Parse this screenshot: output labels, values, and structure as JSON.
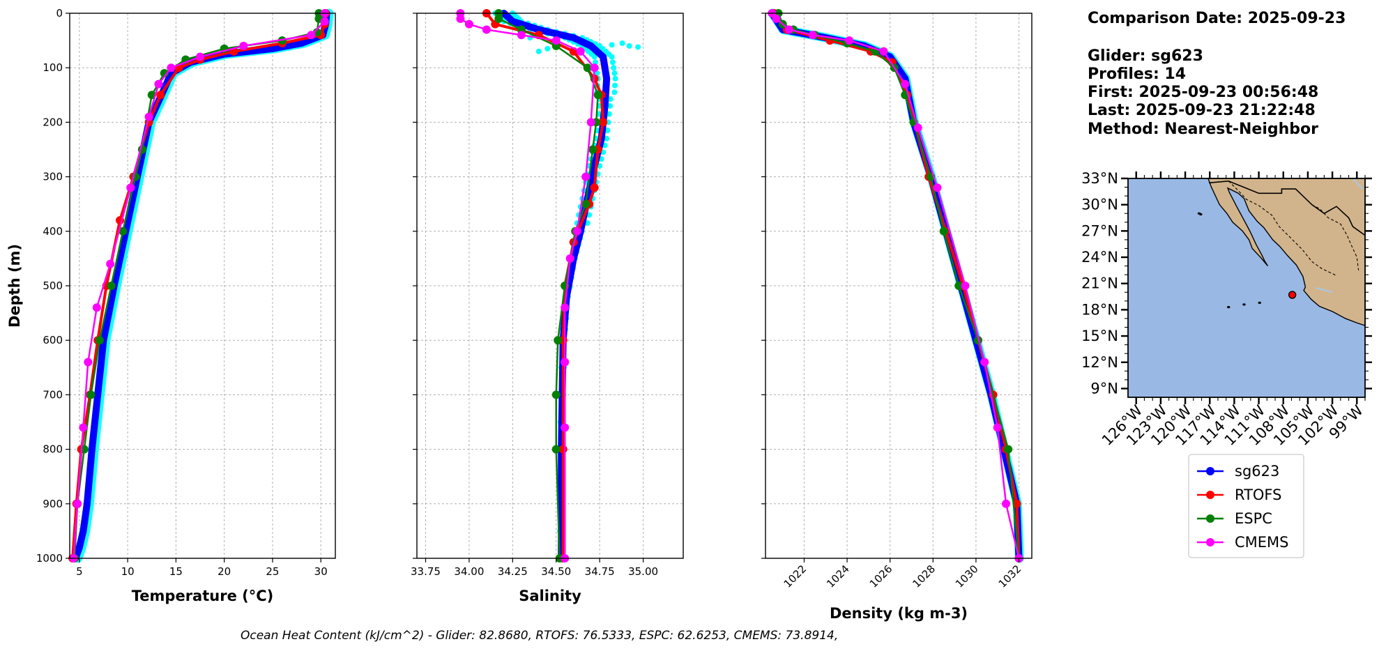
{
  "info": {
    "comparison_date": "Comparison Date: 2025-09-23",
    "glider": "Glider: sg623",
    "profiles": "Profiles: 14",
    "first": "First: 2025-09-23 00:56:48",
    "last": "Last: 2025-09-23 21:22:48",
    "method": "Method: Nearest-Neighbor"
  },
  "footer": "Ocean Heat Content (kJ/cm^2) - Glider: 82.8680,  RTOFS: 76.5333,  ESPC: 62.6253,  CMEMS: 73.8914,",
  "colors": {
    "sg623": "#0000ff",
    "sg623_raw": "#00ffff",
    "RTOFS": "#ff0000",
    "ESPC": "#008000",
    "CMEMS": "#ff00ff",
    "ocean": "#99b8e4",
    "land": "#d2b48c",
    "station": "#ff0000"
  },
  "map": {
    "lat_labels": [
      "33°N",
      "30°N",
      "27°N",
      "24°N",
      "21°N",
      "18°N",
      "15°N",
      "12°N",
      "9°N"
    ],
    "lon_labels": [
      "126°W",
      "123°W",
      "120°W",
      "117°W",
      "114°W",
      "111°W",
      "108°W",
      "105°W",
      "102°W",
      "99°W"
    ],
    "extent": {
      "lon": [
        -127,
        -98
      ],
      "lat": [
        8,
        33
      ]
    },
    "station": {
      "lon": -106.9,
      "lat": 19.7
    }
  },
  "legend": [
    "sg623",
    "RTOFS",
    "ESPC",
    "CMEMS"
  ],
  "chart_data": [
    {
      "type": "line",
      "xlabel": "Temperature (°C)",
      "ylabel": "Depth (m)",
      "xlim": [
        4,
        31.5
      ],
      "ylim": [
        1000,
        0
      ],
      "x_ticks": [
        5,
        10,
        15,
        20,
        25,
        30
      ],
      "y_ticks": [
        0,
        100,
        200,
        300,
        400,
        500,
        600,
        700,
        800,
        900,
        1000
      ],
      "grid": true,
      "series": [
        {
          "name": "sg623",
          "x": [
            30.6,
            30.5,
            30.2,
            28,
            25,
            20,
            16.5,
            14.5,
            13.5,
            12.2,
            11,
            9.8,
            8.6,
            7.5,
            6.9,
            6.3,
            5.8,
            5.4,
            5.0,
            4.6
          ],
          "y": [
            0,
            20,
            40,
            55,
            65,
            75,
            90,
            110,
            150,
            200,
            300,
            400,
            500,
            600,
            700,
            800,
            900,
            950,
            980,
            1000
          ]
        },
        {
          "name": "RTOFS",
          "x": [
            30.5,
            30.4,
            30,
            26,
            21,
            17.5,
            15.3,
            13.4,
            12.2,
            10.6,
            9.2,
            7.8,
            6.9,
            6.1,
            5.2,
            4.7,
            4.3
          ],
          "y": [
            0,
            20,
            40,
            55,
            70,
            85,
            100,
            150,
            200,
            300,
            380,
            500,
            600,
            700,
            800,
            900,
            1000
          ]
        },
        {
          "name": "ESPC",
          "x": [
            29.8,
            29.8,
            29.6,
            26,
            20,
            16,
            13.8,
            12.5,
            11.5,
            10.8,
            9.5,
            8.3,
            7.1,
            6.2,
            5.5,
            4.8,
            4.5
          ],
          "y": [
            0,
            10,
            35,
            50,
            65,
            85,
            110,
            150,
            250,
            300,
            400,
            500,
            600,
            700,
            800,
            900,
            1000
          ]
        },
        {
          "name": "CMEMS",
          "x": [
            30.4,
            30.4,
            29,
            22,
            17.5,
            14.5,
            13.2,
            12.2,
            10.3,
            8.2,
            6.8,
            5.9,
            5.4,
            4.8,
            4.4
          ],
          "y": [
            0,
            15,
            40,
            60,
            80,
            100,
            130,
            190,
            320,
            460,
            540,
            640,
            760,
            900,
            1000
          ]
        }
      ]
    },
    {
      "type": "line",
      "xlabel": "Salinity",
      "xlim": [
        33.7,
        35.23
      ],
      "ylim": [
        1000,
        0
      ],
      "x_ticks": [
        33.75,
        34.0,
        34.25,
        34.5,
        34.75,
        35.0
      ],
      "y_ticks": [
        0,
        100,
        200,
        300,
        400,
        500,
        600,
        700,
        800,
        900,
        1000
      ],
      "grid": true,
      "series": [
        {
          "name": "sg623",
          "x": [
            34.2,
            34.25,
            34.4,
            34.6,
            34.7,
            34.77,
            34.79,
            34.78,
            34.76,
            34.72,
            34.68,
            34.64,
            34.6,
            34.56,
            34.54,
            34.53,
            34.53
          ],
          "y": [
            0,
            15,
            30,
            45,
            60,
            80,
            120,
            170,
            230,
            280,
            340,
            400,
            450,
            520,
            600,
            800,
            1000
          ]
        },
        {
          "name": "RTOFS",
          "x": [
            34.1,
            34.15,
            34.4,
            34.6,
            34.72,
            34.76,
            34.77,
            34.74,
            34.72,
            34.69,
            34.6,
            34.55,
            34.54,
            34.54,
            34.54
          ],
          "y": [
            0,
            20,
            40,
            70,
            120,
            150,
            200,
            250,
            320,
            350,
            420,
            500,
            600,
            800,
            1000
          ]
        },
        {
          "name": "ESPC",
          "x": [
            34.17,
            34.17,
            34.3,
            34.5,
            34.68,
            34.74,
            34.73,
            34.71,
            34.67,
            34.61,
            34.55,
            34.51,
            34.5,
            34.5,
            34.52
          ],
          "y": [
            0,
            10,
            30,
            60,
            100,
            150,
            200,
            250,
            350,
            400,
            500,
            600,
            700,
            800,
            1000
          ]
        },
        {
          "name": "CMEMS",
          "x": [
            33.95,
            33.95,
            34.0,
            34.1,
            34.3,
            34.5,
            34.64,
            34.72,
            34.7,
            34.67,
            34.62,
            34.58,
            34.55,
            34.55,
            34.55,
            34.55
          ],
          "y": [
            0,
            10,
            20,
            30,
            40,
            50,
            70,
            100,
            200,
            300,
            400,
            450,
            540,
            640,
            760,
            1000
          ]
        }
      ]
    },
    {
      "type": "line",
      "xlabel": "Density (kg m-3)",
      "xlim": [
        1020.2,
        1032.6
      ],
      "ylim": [
        1000,
        0
      ],
      "x_ticks": [
        1022,
        1024,
        1026,
        1028,
        1030,
        1032
      ],
      "y_ticks": [
        0,
        100,
        200,
        300,
        400,
        500,
        600,
        700,
        800,
        900,
        1000
      ],
      "grid": true,
      "series": [
        {
          "name": "sg623",
          "x": [
            1020.5,
            1021,
            1023,
            1024.8,
            1026,
            1026.7,
            1027.1,
            1027.9,
            1028.6,
            1029.3,
            1030,
            1030.7,
            1031.3,
            1031.9,
            1032
          ],
          "y": [
            0,
            30,
            45,
            60,
            80,
            120,
            200,
            300,
            400,
            500,
            600,
            700,
            800,
            900,
            1000
          ]
        },
        {
          "name": "RTOFS",
          "x": [
            1020.6,
            1021.2,
            1023.2,
            1025.1,
            1026.1,
            1026.8,
            1027.8,
            1028.6,
            1029.4,
            1030.1,
            1030.8,
            1031.4,
            1031.9,
            1032
          ],
          "y": [
            0,
            30,
            50,
            70,
            90,
            150,
            300,
            400,
            500,
            600,
            700,
            800,
            900,
            1000
          ]
        },
        {
          "name": "ESPC",
          "x": [
            1020.8,
            1021,
            1021.5,
            1022.5,
            1024,
            1025.3,
            1026.2,
            1026.7,
            1027.1,
            1027.9,
            1028.5,
            1029.2,
            1030.1,
            1031.5,
            1032
          ],
          "y": [
            0,
            20,
            30,
            40,
            55,
            70,
            100,
            150,
            200,
            300,
            400,
            500,
            600,
            800,
            1000
          ]
        },
        {
          "name": "CMEMS",
          "x": [
            1020.5,
            1020.7,
            1021.3,
            1022.4,
            1024.1,
            1025.7,
            1026.7,
            1027.3,
            1028.2,
            1029.5,
            1030.4,
            1031.0,
            1031.4,
            1032
          ],
          "y": [
            0,
            10,
            30,
            40,
            50,
            70,
            130,
            210,
            320,
            500,
            640,
            760,
            900,
            1000
          ]
        }
      ]
    }
  ]
}
